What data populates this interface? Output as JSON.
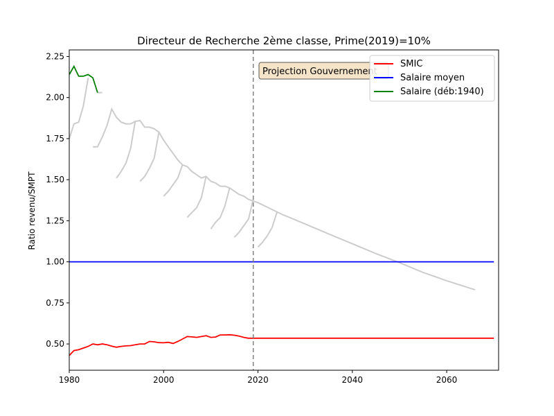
{
  "chart_data": {
    "type": "line",
    "title": "Directeur de Recherche 2ème classe, Prime(2019)=10%",
    "xlabel": "",
    "ylabel": "Ratio revenu/SMPT",
    "xlim": [
      1980,
      2071
    ],
    "ylim": [
      0.34,
      2.29
    ],
    "xticks": [
      1980,
      2000,
      2020,
      2040,
      2060
    ],
    "yticks": [
      0.5,
      0.75,
      1.0,
      1.25,
      1.5,
      1.75,
      2.0,
      2.25
    ],
    "xtick_labels": [
      "1980",
      "2000",
      "2020",
      "2040",
      "2060"
    ],
    "ytick_labels": [
      "0.50",
      "0.75",
      "1.00",
      "1.25",
      "1.50",
      "1.75",
      "2.00",
      "2.25"
    ],
    "grid": false,
    "legend_position": "top-right",
    "annotation": "Projection Gouvernement",
    "vline_x": 2019,
    "series": [
      {
        "name": "SMIC",
        "color": "#ff0000",
        "x": [
          1980,
          1981,
          1982,
          1983,
          1984,
          1985,
          1986,
          1987,
          1988,
          1989,
          1990,
          1991,
          1992,
          1993,
          1994,
          1995,
          1996,
          1997,
          1998,
          1999,
          2000,
          2001,
          2002,
          2003,
          2004,
          2005,
          2006,
          2007,
          2008,
          2009,
          2010,
          2011,
          2012,
          2013,
          2014,
          2015,
          2016,
          2017,
          2018,
          2019,
          2020,
          2030,
          2040,
          2050,
          2060,
          2070
        ],
        "y": [
          0.43,
          0.46,
          0.465,
          0.475,
          0.485,
          0.5,
          0.495,
          0.5,
          0.495,
          0.487,
          0.48,
          0.485,
          0.488,
          0.49,
          0.495,
          0.5,
          0.5,
          0.515,
          0.513,
          0.508,
          0.507,
          0.51,
          0.503,
          0.515,
          0.53,
          0.545,
          0.543,
          0.54,
          0.545,
          0.55,
          0.54,
          0.542,
          0.555,
          0.555,
          0.556,
          0.553,
          0.548,
          0.54,
          0.535,
          0.535,
          0.535,
          0.535,
          0.535,
          0.535,
          0.535,
          0.535
        ]
      },
      {
        "name": "Salaire moyen",
        "color": "#0000ff",
        "x": [
          1980,
          2070
        ],
        "y": [
          1.0,
          1.0
        ]
      },
      {
        "name": "Salaire (déb:1940)",
        "color": "#008000",
        "x": [
          1980,
          1981,
          1982,
          1983,
          1984,
          1985,
          1986
        ],
        "y": [
          2.14,
          2.19,
          2.13,
          2.13,
          2.14,
          2.12,
          2.03
        ]
      }
    ],
    "career_curves": {
      "color": "#cccccc",
      "curves": [
        {
          "x": [
            1980,
            1981,
            1982,
            1983,
            1984
          ],
          "y": [
            1.75,
            1.84,
            1.85,
            1.95,
            2.12
          ]
        },
        {
          "x": [
            1985,
            1986,
            1987,
            1988,
            1989,
            1990,
            1991,
            1992,
            1993,
            1994,
            1995,
            1996,
            1997,
            1998,
            1999,
            2000,
            2001,
            2002,
            2003,
            2004,
            2005,
            2006,
            2007,
            2008,
            2009,
            2010,
            2011,
            2012,
            2013,
            2014,
            2015,
            2016,
            2017,
            2018,
            2019,
            2020,
            2025,
            2030,
            2035,
            2040,
            2045,
            2050,
            2055,
            2060,
            2066
          ],
          "y": [
            1.7,
            1.7,
            1.76,
            1.83,
            1.93,
            1.88,
            1.85,
            1.84,
            1.84,
            1.855,
            1.86,
            1.82,
            1.82,
            1.81,
            1.79,
            1.74,
            1.7,
            1.66,
            1.62,
            1.59,
            1.58,
            1.55,
            1.53,
            1.51,
            1.52,
            1.49,
            1.48,
            1.46,
            1.46,
            1.45,
            1.43,
            1.41,
            1.4,
            1.38,
            1.37,
            1.36,
            1.29,
            1.23,
            1.17,
            1.11,
            1.05,
            0.995,
            0.935,
            0.885,
            0.83
          ]
        },
        {
          "x": [
            1986,
            1987
          ],
          "y": [
            2.03,
            2.03
          ]
        },
        {
          "x": [
            1990,
            1991,
            1992,
            1993,
            1994
          ],
          "y": [
            1.51,
            1.55,
            1.6,
            1.69,
            1.86
          ]
        },
        {
          "x": [
            1995,
            1996,
            1997,
            1998,
            1999
          ],
          "y": [
            1.49,
            1.52,
            1.57,
            1.63,
            1.79
          ]
        },
        {
          "x": [
            2000,
            2001,
            2002,
            2003,
            2004
          ],
          "y": [
            1.4,
            1.43,
            1.47,
            1.51,
            1.59
          ]
        },
        {
          "x": [
            2005,
            2006,
            2007,
            2008,
            2009
          ],
          "y": [
            1.27,
            1.3,
            1.33,
            1.39,
            1.52
          ]
        },
        {
          "x": [
            2010,
            2011,
            2012,
            2013,
            2014
          ],
          "y": [
            1.2,
            1.24,
            1.27,
            1.34,
            1.45
          ]
        },
        {
          "x": [
            2015,
            2016,
            2017,
            2018,
            2019
          ],
          "y": [
            1.15,
            1.18,
            1.22,
            1.26,
            1.38
          ]
        },
        {
          "x": [
            2020,
            2021,
            2022,
            2023,
            2024
          ],
          "y": [
            1.09,
            1.12,
            1.16,
            1.21,
            1.3
          ]
        }
      ]
    }
  }
}
